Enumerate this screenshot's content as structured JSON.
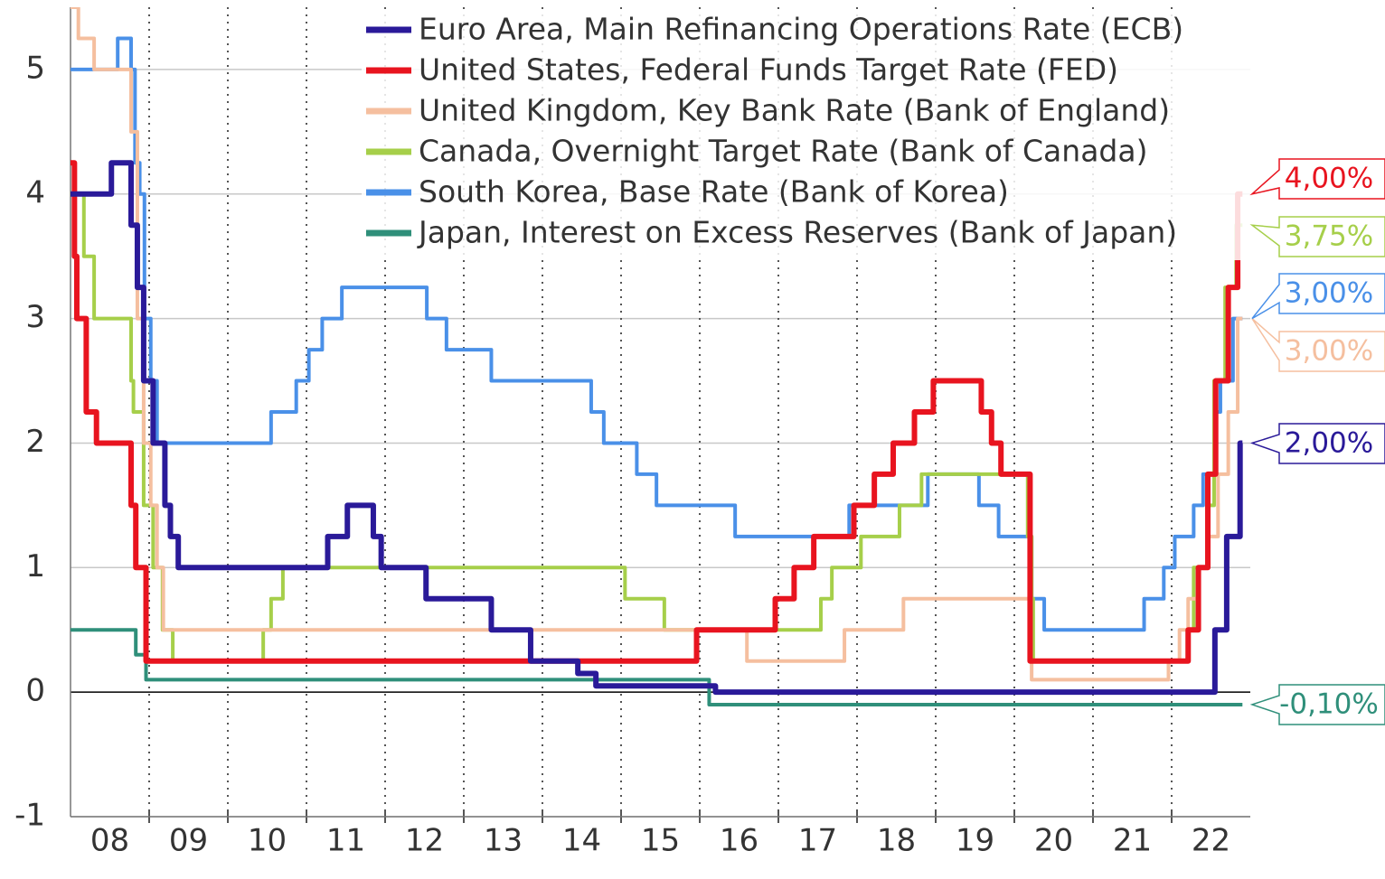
{
  "chart_data": {
    "type": "line",
    "step": true,
    "xlim": [
      2008,
      2023
    ],
    "ylim": [
      -1,
      5.5
    ],
    "yticks": [
      -1,
      0,
      1,
      2,
      3,
      4,
      5
    ],
    "xticks": [
      {
        "value": 2008.5,
        "label": "08"
      },
      {
        "value": 2009.5,
        "label": "09"
      },
      {
        "value": 2010.5,
        "label": "10"
      },
      {
        "value": 2011.5,
        "label": "11"
      },
      {
        "value": 2012.5,
        "label": "12"
      },
      {
        "value": 2013.5,
        "label": "13"
      },
      {
        "value": 2014.5,
        "label": "14"
      },
      {
        "value": 2015.5,
        "label": "15"
      },
      {
        "value": 2016.5,
        "label": "16"
      },
      {
        "value": 2017.5,
        "label": "17"
      },
      {
        "value": 2018.5,
        "label": "18"
      },
      {
        "value": 2019.5,
        "label": "19"
      },
      {
        "value": 2020.5,
        "label": "20"
      },
      {
        "value": 2021.5,
        "label": "21"
      },
      {
        "value": 2022.5,
        "label": "22"
      }
    ],
    "xgrid_lines": [
      2009,
      2010,
      2011,
      2012,
      2013,
      2014,
      2015,
      2016,
      2017,
      2018,
      2019,
      2020,
      2021,
      2022
    ],
    "grid": true,
    "legend": "top",
    "series": [
      {
        "name": "Euro Area, Main Refinancing Operations Rate (ECB)",
        "color": "#2a1a99",
        "width": 6,
        "end_label": "2,00%",
        "x": [
          2008,
          2008.52,
          2008.77,
          2008.85,
          2008.93,
          2009.05,
          2009.2,
          2009.27,
          2009.37,
          2011.27,
          2011.52,
          2011.85,
          2011.95,
          2012.52,
          2013.35,
          2013.85,
          2014.45,
          2014.68,
          2016.2,
          2022.55,
          2022.7,
          2022.87,
          2022.9
        ],
        "values": [
          4,
          4.25,
          3.75,
          3.25,
          2.5,
          2,
          1.5,
          1.25,
          1,
          1.25,
          1.5,
          1.25,
          1,
          0.75,
          0.5,
          0.25,
          0.15,
          0.05,
          0,
          0.5,
          1.25,
          2,
          2
        ]
      },
      {
        "name": "United States, Federal Funds Target Rate (FED)",
        "color": "#e8141f",
        "width": 6,
        "end_label": "4,00%",
        "x": [
          2008,
          2008.05,
          2008.08,
          2008.2,
          2008.33,
          2008.77,
          2008.83,
          2008.96,
          2015.96,
          2016.96,
          2017.2,
          2017.45,
          2017.96,
          2018.22,
          2018.46,
          2018.73,
          2018.97,
          2019.58,
          2019.71,
          2019.83,
          2020.2,
          2022.21,
          2022.34,
          2022.46,
          2022.56,
          2022.72,
          2022.84,
          2022.9
        ],
        "values": [
          4.25,
          3.5,
          3,
          2.25,
          2,
          1.5,
          1,
          0.25,
          0.5,
          0.75,
          1,
          1.25,
          1.5,
          1.75,
          2,
          2.25,
          2.5,
          2.25,
          2,
          1.75,
          0.25,
          0.5,
          1,
          1.75,
          2.5,
          3.25,
          4,
          4
        ]
      },
      {
        "name": "United Kingdom, Key Bank Rate (Bank of England)",
        "color": "#f5bf9f",
        "width": 4,
        "end_label": "3,00%",
        "x": [
          2008,
          2008.1,
          2008.3,
          2008.77,
          2008.85,
          2008.93,
          2009.02,
          2009.1,
          2009.18,
          2016.6,
          2017.84,
          2018.59,
          2020.19,
          2020.22,
          2021.96,
          2022.1,
          2022.21,
          2022.34,
          2022.46,
          2022.59,
          2022.72,
          2022.84,
          2022.9
        ],
        "values": [
          5.5,
          5.25,
          5,
          4.5,
          3,
          2,
          1.5,
          1,
          0.5,
          0.25,
          0.5,
          0.75,
          0.25,
          0.1,
          0.25,
          0.5,
          0.75,
          1,
          1.25,
          1.75,
          2.25,
          3,
          3
        ]
      },
      {
        "name": "Canada, Overnight Target Rate (Bank of Canada)",
        "color": "#a6cf4a",
        "width": 4,
        "end_label": "3,75%",
        "x": [
          2008,
          2008.05,
          2008.17,
          2008.3,
          2008.77,
          2008.8,
          2008.93,
          2009.05,
          2009.17,
          2009.3,
          2010.45,
          2010.55,
          2010.7,
          2015.05,
          2015.55,
          2017.54,
          2017.68,
          2018.05,
          2018.54,
          2018.82,
          2020.17,
          2020.22,
          2020.24,
          2022.2,
          2022.28,
          2022.45,
          2022.54,
          2022.68,
          2022.82,
          2022.9
        ],
        "values": [
          4.25,
          4,
          3.5,
          3,
          2.5,
          2.25,
          1.5,
          1,
          0.5,
          0.25,
          0.5,
          0.75,
          1,
          0.75,
          0.5,
          0.75,
          1,
          1.25,
          1.5,
          1.75,
          1.25,
          0.75,
          0.25,
          0.5,
          1,
          1.5,
          2.5,
          3.25,
          3.75,
          3.75
        ]
      },
      {
        "name": "South Korea, Base Rate (Bank of Korea)",
        "color": "#4a90e8",
        "width": 4,
        "end_label": "3,00%",
        "x": [
          2008,
          2008.6,
          2008.77,
          2008.82,
          2008.88,
          2008.94,
          2009.02,
          2009.1,
          2010.55,
          2010.87,
          2011.03,
          2011.2,
          2011.45,
          2012.53,
          2012.78,
          2013.35,
          2014.62,
          2014.78,
          2015.2,
          2015.45,
          2016.45,
          2017.9,
          2018.9,
          2019.55,
          2019.8,
          2020.22,
          2020.38,
          2021.65,
          2021.9,
          2022.04,
          2022.28,
          2022.4,
          2022.55,
          2022.62,
          2022.78,
          2022.9
        ],
        "values": [
          5,
          5.25,
          5,
          4.25,
          4,
          3,
          2.5,
          2,
          2.25,
          2.5,
          2.75,
          3,
          3.25,
          3,
          2.75,
          2.5,
          2.25,
          2,
          1.75,
          1.5,
          1.25,
          1.5,
          1.75,
          1.5,
          1.25,
          0.75,
          0.5,
          0.75,
          1,
          1.25,
          1.5,
          1.75,
          2.25,
          2.5,
          3,
          3
        ]
      },
      {
        "name": "Japan, Interest on Excess Reserves (Bank of Japan)",
        "color": "#2f8f7a",
        "width": 4,
        "end_label": "-0,10%",
        "x": [
          2008,
          2008.83,
          2008.96,
          2016.12,
          2022.9
        ],
        "values": [
          0.5,
          0.3,
          0.1,
          -0.1,
          -0.1
        ]
      }
    ]
  }
}
